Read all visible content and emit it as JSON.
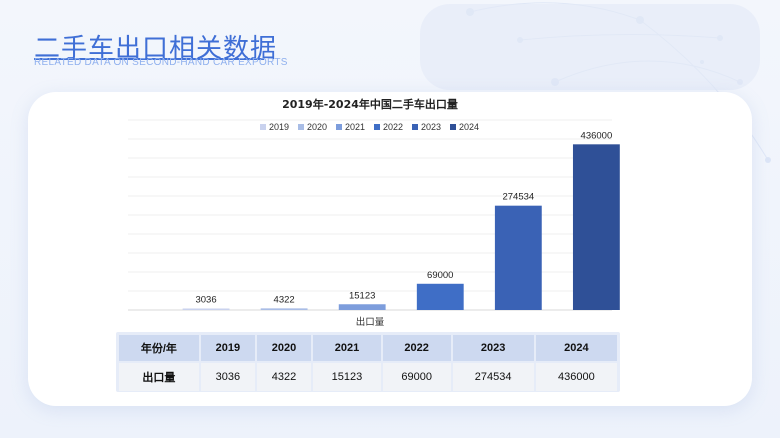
{
  "header": {
    "title": "二手车出口相关数据",
    "subtitle": "RELATED DATA ON SECOND-HAND CAR EXPORTS"
  },
  "colors": {
    "accent": "#3f6fd6",
    "series": [
      "#c9d2ee",
      "#a9bde6",
      "#7d9ddc",
      "#3f6ec6",
      "#3a62b5",
      "#2f5097"
    ]
  },
  "chart_data": {
    "type": "bar",
    "title": "2019年-2024年中国二手车出口量",
    "xlabel": "出口量",
    "ylabel": "",
    "categories": [
      "2019",
      "2020",
      "2021",
      "2022",
      "2023",
      "2024"
    ],
    "values": [
      3036,
      4322,
      15123,
      69000,
      274534,
      436000
    ],
    "legend": [
      "2019",
      "2020",
      "2021",
      "2022",
      "2023",
      "2024"
    ],
    "legend_position": "top",
    "ylim": [
      0,
      500000
    ],
    "grid": true
  },
  "table": {
    "header_label": "年份/年",
    "row_label": "出口量",
    "years": [
      "2019",
      "2020",
      "2021",
      "2022",
      "2023",
      "2024"
    ],
    "values": [
      "3036",
      "4322",
      "15123",
      "69000",
      "274534",
      "436000"
    ]
  }
}
